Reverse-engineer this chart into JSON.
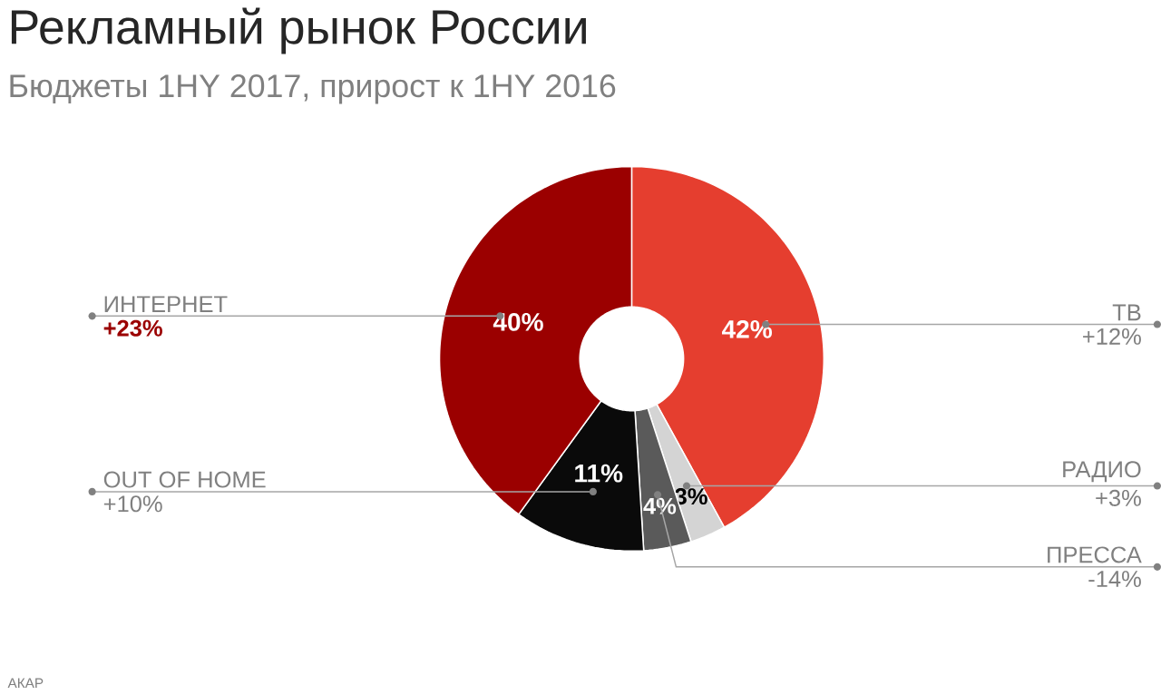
{
  "chart_data": {
    "type": "donut",
    "title": "Рекламный рынок России",
    "subtitle": "Бюджеты 1HY 2017, прирост к 1HY 2016",
    "categories": [
      "ТВ",
      "РАДИО",
      "ПРЕССА",
      "OUT OF HOME",
      "ИНТЕРНЕТ"
    ],
    "values": [
      42,
      3,
      4,
      11,
      40
    ],
    "value_labels": [
      "42%",
      "3%",
      "4%",
      "11%",
      "40%"
    ],
    "colors": [
      "#e53e2f",
      "#d4d4d4",
      "#5a5a5a",
      "#0a0a0a",
      "#9b0000"
    ],
    "annotations": [
      "+12%",
      "+3%",
      "-14%",
      "+10%",
      "**+23%**",
      "АКАР"
    ]
  }
}
